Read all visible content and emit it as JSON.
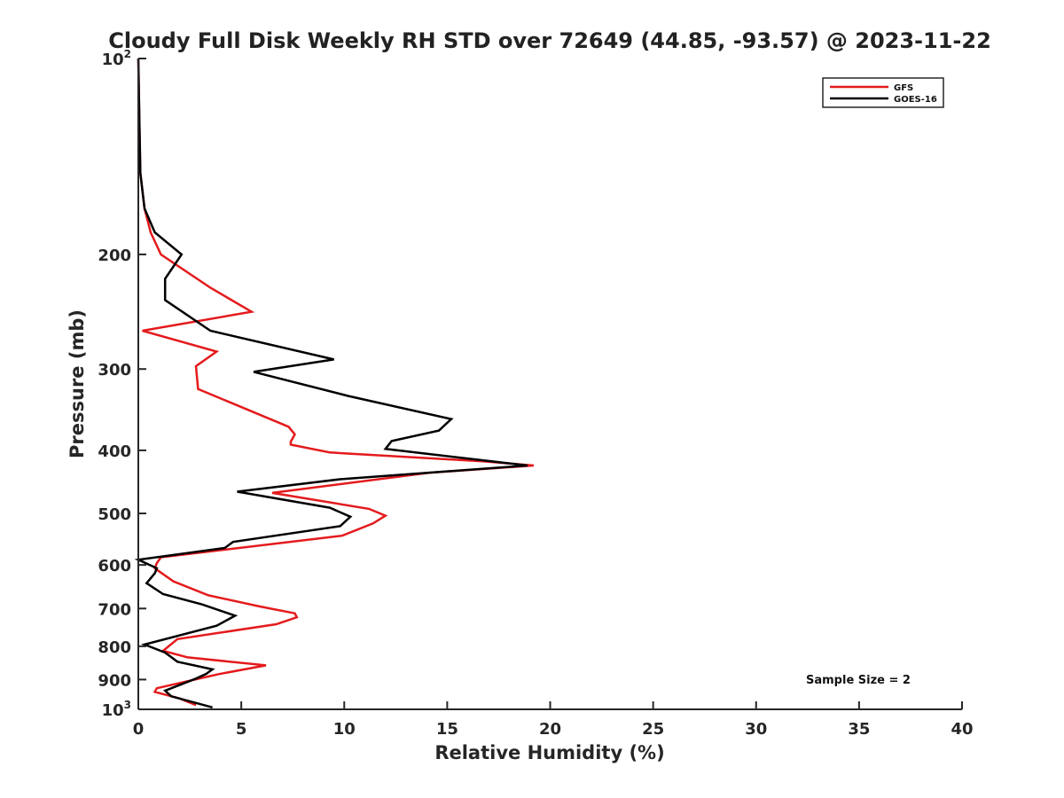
{
  "chart_data": {
    "type": "line",
    "title": "Cloudy Full Disk Weekly RH STD over 72649 (44.85, -93.57) @ 2023-11-22",
    "xlabel": "Relative Humidity (%)",
    "ylabel": "Pressure (mb)",
    "xlim": [
      0,
      40
    ],
    "ylim": [
      100,
      1000
    ],
    "y_scale": "log",
    "y_reversed": true,
    "x_ticks": [
      "0",
      "5",
      "10",
      "15",
      "20",
      "25",
      "30",
      "35",
      "40"
    ],
    "y_ticks": [
      {
        "value": 100,
        "base": "10",
        "sup": "2"
      },
      {
        "value": 200,
        "base": "200",
        "sup": ""
      },
      {
        "value": 300,
        "base": "300",
        "sup": ""
      },
      {
        "value": 400,
        "base": "400",
        "sup": ""
      },
      {
        "value": 500,
        "base": "500",
        "sup": ""
      },
      {
        "value": 600,
        "base": "600",
        "sup": ""
      },
      {
        "value": 700,
        "base": "700",
        "sup": ""
      },
      {
        "value": 800,
        "base": "800",
        "sup": ""
      },
      {
        "value": 900,
        "base": "900",
        "sup": ""
      },
      {
        "value": 1000,
        "base": "10",
        "sup": "3"
      }
    ],
    "grid": false,
    "legend_position": "top-right",
    "annotation": "Sample Size = 2",
    "series": [
      {
        "name": "GFS",
        "color": "#e41a1c",
        "points": [
          [
            0.0,
            100
          ],
          [
            0.05,
            125
          ],
          [
            0.1,
            150
          ],
          [
            0.3,
            170
          ],
          [
            0.6,
            185
          ],
          [
            1.1,
            200
          ],
          [
            3.5,
            225
          ],
          [
            5.5,
            245
          ],
          [
            0.2,
            262
          ],
          [
            3.8,
            282
          ],
          [
            2.8,
            297
          ],
          [
            2.9,
            322
          ],
          [
            7.3,
            368
          ],
          [
            7.6,
            378
          ],
          [
            7.4,
            388
          ],
          [
            7.4,
            392
          ],
          [
            9.3,
            403
          ],
          [
            16.8,
            416
          ],
          [
            19.2,
            422
          ],
          [
            14.1,
            433
          ],
          [
            6.5,
            465
          ],
          [
            11.2,
            492
          ],
          [
            12.0,
            504
          ],
          [
            11.4,
            518
          ],
          [
            9.9,
            541
          ],
          [
            1.1,
            584
          ],
          [
            0.9,
            596
          ],
          [
            0.8,
            607
          ],
          [
            1.7,
            636
          ],
          [
            3.4,
            668
          ],
          [
            5.9,
            695
          ],
          [
            7.6,
            712
          ],
          [
            7.7,
            722
          ],
          [
            6.7,
            740
          ],
          [
            1.9,
            780
          ],
          [
            1.2,
            813
          ],
          [
            2.4,
            832
          ],
          [
            6.2,
            856
          ],
          [
            3.9,
            883
          ],
          [
            0.9,
            928
          ],
          [
            0.8,
            940
          ],
          [
            2.0,
            962
          ],
          [
            2.8,
            985
          ]
        ]
      },
      {
        "name": "GOES-16",
        "color": "#000000",
        "points": [
          [
            0.0,
            100
          ],
          [
            0.05,
            125
          ],
          [
            0.1,
            150
          ],
          [
            0.3,
            170
          ],
          [
            0.8,
            185
          ],
          [
            2.1,
            200
          ],
          [
            1.3,
            218
          ],
          [
            1.3,
            235
          ],
          [
            3.5,
            262
          ],
          [
            9.5,
            290
          ],
          [
            5.6,
            303
          ],
          [
            10.2,
            330
          ],
          [
            15.2,
            358
          ],
          [
            14.6,
            373
          ],
          [
            12.3,
            387
          ],
          [
            12.0,
            398
          ],
          [
            18.9,
            422
          ],
          [
            9.8,
            443
          ],
          [
            4.8,
            463
          ],
          [
            9.3,
            490
          ],
          [
            10.3,
            506
          ],
          [
            9.8,
            523
          ],
          [
            4.6,
            553
          ],
          [
            4.2,
            565
          ],
          [
            0.0,
            589
          ],
          [
            0.9,
            607
          ],
          [
            0.8,
            618
          ],
          [
            0.4,
            640
          ],
          [
            1.2,
            665
          ],
          [
            3.1,
            690
          ],
          [
            4.7,
            718
          ],
          [
            3.8,
            744
          ],
          [
            0.3,
            795
          ],
          [
            1.3,
            818
          ],
          [
            1.9,
            845
          ],
          [
            3.6,
            868
          ],
          [
            3.3,
            882
          ],
          [
            2.8,
            897
          ],
          [
            1.3,
            936
          ],
          [
            1.6,
            955
          ],
          [
            3.6,
            993
          ]
        ]
      }
    ]
  }
}
